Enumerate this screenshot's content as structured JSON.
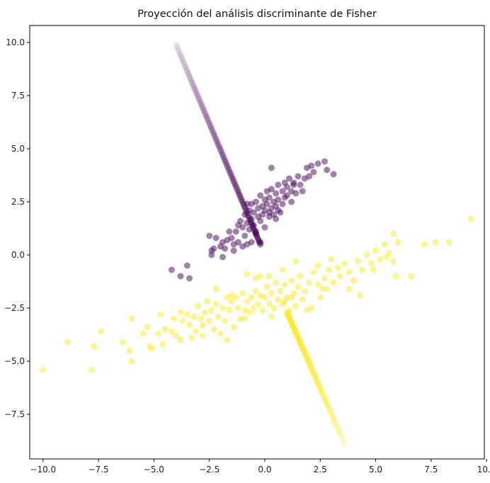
{
  "chart_data": {
    "type": "scatter",
    "title": "Proyección del análisis discriminante de Fisher",
    "xlabel": "",
    "ylabel": "",
    "xlim": [
      -10.6,
      9.9
    ],
    "ylim": [
      -9.6,
      10.8
    ],
    "xticks": [
      -10.0,
      -7.5,
      -5.0,
      -2.5,
      0.0,
      2.5,
      5.0,
      7.5,
      10.0
    ],
    "xtick_labels": [
      "−10.0",
      "−7.5",
      "−5.0",
      "−2.5",
      "0.0",
      "2.5",
      "5.0",
      "7.5",
      "10.0"
    ],
    "yticks": [
      -7.5,
      -5.0,
      -2.5,
      0.0,
      2.5,
      5.0,
      7.5,
      10.0
    ],
    "ytick_labels": [
      "−7.5",
      "−5.0",
      "−2.5",
      "0.0",
      "2.5",
      "5.0",
      "7.5",
      "10.0"
    ],
    "grid": false,
    "legend": "none",
    "series": [
      {
        "color": "#440154",
        "points": [
          [
            -4.2,
            -0.7
          ],
          [
            -3.8,
            -1.0
          ],
          [
            -3.4,
            -1.1
          ],
          [
            -3.5,
            -0.5
          ],
          [
            -2.4,
            0.2
          ],
          [
            -2.3,
            0.3
          ],
          [
            -2.0,
            0.4
          ],
          [
            -2.2,
            0.8
          ],
          [
            -2.5,
            0.9
          ],
          [
            -1.7,
            0.7
          ],
          [
            -1.8,
            0.3
          ],
          [
            -1.5,
            0.8
          ],
          [
            -1.4,
            0.5
          ],
          [
            -1.3,
            1.1
          ],
          [
            -1.2,
            0.6
          ],
          [
            -1.1,
            1.6
          ],
          [
            -1.0,
            1.3
          ],
          [
            -0.9,
            0.9
          ],
          [
            -0.9,
            1.9
          ],
          [
            -0.8,
            1.5
          ],
          [
            -0.8,
            0.5
          ],
          [
            -0.7,
            2.1
          ],
          [
            -0.7,
            1.2
          ],
          [
            -0.6,
            1.7
          ],
          [
            -0.6,
            2.4
          ],
          [
            -0.5,
            1.4
          ],
          [
            -0.5,
            2.0
          ],
          [
            -0.4,
            1.0
          ],
          [
            -0.4,
            2.5
          ],
          [
            -0.3,
            1.8
          ],
          [
            -0.3,
            2.2
          ],
          [
            -0.2,
            1.6
          ],
          [
            -0.2,
            2.8
          ],
          [
            -0.1,
            2.3
          ],
          [
            -0.1,
            1.9
          ],
          [
            0.0,
            2.6
          ],
          [
            0.0,
            2.1
          ],
          [
            0.1,
            3.0
          ],
          [
            0.1,
            2.4
          ],
          [
            0.2,
            1.8
          ],
          [
            0.2,
            2.7
          ],
          [
            0.3,
            2.2
          ],
          [
            0.3,
            3.1
          ],
          [
            0.4,
            2.5
          ],
          [
            0.4,
            1.9
          ],
          [
            0.5,
            2.9
          ],
          [
            0.5,
            2.3
          ],
          [
            0.6,
            3.3
          ],
          [
            0.6,
            2.6
          ],
          [
            0.7,
            2.0
          ],
          [
            0.8,
            3.0
          ],
          [
            0.8,
            2.4
          ],
          [
            0.9,
            3.4
          ],
          [
            0.9,
            2.7
          ],
          [
            1.0,
            3.2
          ],
          [
            1.0,
            2.8
          ],
          [
            1.1,
            3.6
          ],
          [
            1.2,
            3.0
          ],
          [
            1.3,
            3.4
          ],
          [
            1.4,
            2.9
          ],
          [
            1.5,
            3.7
          ],
          [
            1.6,
            3.3
          ],
          [
            1.8,
            3.6
          ],
          [
            1.9,
            4.1
          ],
          [
            2.0,
            3.7
          ],
          [
            2.1,
            4.2
          ],
          [
            2.2,
            3.9
          ],
          [
            2.4,
            4.3
          ],
          [
            2.7,
            4.4
          ],
          [
            2.8,
            4.0
          ],
          [
            3.1,
            3.8
          ],
          [
            0.3,
            4.1
          ],
          [
            -0.2,
            0.6
          ],
          [
            -1.4,
            0.2
          ],
          [
            -1.9,
            -0.1
          ],
          [
            -2.4,
            0.0
          ],
          [
            -0.6,
            0.6
          ],
          [
            -1.0,
            0.4
          ],
          [
            0.0,
            1.3
          ],
          [
            0.5,
            1.7
          ],
          [
            -1.6,
            1.1
          ],
          [
            -1.2,
            1.4
          ],
          [
            -0.4,
            1.1
          ],
          [
            0.6,
            2.1
          ],
          [
            1.2,
            2.5
          ],
          [
            1.7,
            3.0
          ],
          [
            -1.9,
            0.6
          ],
          [
            -0.8,
            2.4
          ],
          [
            0.2,
            2.0
          ],
          [
            1.3,
            3.3
          ]
        ],
        "projection": {
          "from": [
            -4.0,
            9.9
          ],
          "to": [
            -0.2,
            0.5
          ],
          "count": 90
        }
      },
      {
        "color": "#fde725",
        "points": [
          [
            -10.0,
            -5.4
          ],
          [
            -8.9,
            -4.1
          ],
          [
            -7.7,
            -4.3
          ],
          [
            -7.8,
            -5.4
          ],
          [
            -7.4,
            -3.6
          ],
          [
            -6.1,
            -4.5
          ],
          [
            -6.0,
            -5.0
          ],
          [
            -6.0,
            -3.0
          ],
          [
            -5.3,
            -3.4
          ],
          [
            -5.2,
            -4.3
          ],
          [
            -5.1,
            -4.4
          ],
          [
            -4.8,
            -3.7
          ],
          [
            -4.7,
            -2.8
          ],
          [
            -4.6,
            -4.2
          ],
          [
            -4.5,
            -3.5
          ],
          [
            -4.2,
            -3.6
          ],
          [
            -4.0,
            -3.8
          ],
          [
            -3.8,
            -4.0
          ],
          [
            -3.7,
            -3.1
          ],
          [
            -3.5,
            -2.8
          ],
          [
            -3.4,
            -3.3
          ],
          [
            -3.2,
            -2.9
          ],
          [
            -3.1,
            -3.6
          ],
          [
            -3.0,
            -2.4
          ],
          [
            -2.9,
            -3.0
          ],
          [
            -2.8,
            -3.3
          ],
          [
            -2.7,
            -2.7
          ],
          [
            -2.6,
            -2.2
          ],
          [
            -2.5,
            -3.1
          ],
          [
            -2.4,
            -2.6
          ],
          [
            -2.3,
            -3.5
          ],
          [
            -2.2,
            -2.3
          ],
          [
            -2.1,
            -2.9
          ],
          [
            -2.0,
            -3.7
          ],
          [
            -1.9,
            -2.5
          ],
          [
            -1.8,
            -3.1
          ],
          [
            -1.7,
            -4.0
          ],
          [
            -1.6,
            -2.6
          ],
          [
            -1.5,
            -2.2
          ],
          [
            -1.4,
            -3.4
          ],
          [
            -1.3,
            -2.0
          ],
          [
            -1.2,
            -2.5
          ],
          [
            -1.1,
            -3.0
          ],
          [
            -1.0,
            -1.8
          ],
          [
            -0.9,
            -2.6
          ],
          [
            -0.8,
            -2.2
          ],
          [
            -0.7,
            -2.7
          ],
          [
            -0.6,
            -2.0
          ],
          [
            -0.5,
            -2.5
          ],
          [
            -0.4,
            -1.7
          ],
          [
            -0.3,
            -2.3
          ],
          [
            -0.2,
            -1.9
          ],
          [
            -0.1,
            -2.6
          ],
          [
            0.0,
            -2.0
          ],
          [
            0.1,
            -1.5
          ],
          [
            0.2,
            -2.3
          ],
          [
            0.3,
            -1.8
          ],
          [
            0.4,
            -2.5
          ],
          [
            0.5,
            -1.3
          ],
          [
            0.6,
            -2.1
          ],
          [
            0.7,
            -1.7
          ],
          [
            0.8,
            -2.3
          ],
          [
            0.9,
            -1.4
          ],
          [
            1.0,
            -2.0
          ],
          [
            1.1,
            -2.6
          ],
          [
            1.2,
            -1.2
          ],
          [
            1.3,
            -1.8
          ],
          [
            1.4,
            -2.4
          ],
          [
            1.5,
            -1.5
          ],
          [
            1.6,
            -1.0
          ],
          [
            1.7,
            -2.1
          ],
          [
            1.8,
            -1.7
          ],
          [
            2.0,
            -1.3
          ],
          [
            2.1,
            -2.5
          ],
          [
            2.2,
            -0.8
          ],
          [
            2.4,
            -1.4
          ],
          [
            2.5,
            -2.0
          ],
          [
            2.7,
            -1.1
          ],
          [
            2.8,
            -1.6
          ],
          [
            2.9,
            -0.7
          ],
          [
            3.0,
            -0.2
          ],
          [
            3.1,
            -1.3
          ],
          [
            3.3,
            -0.6
          ],
          [
            3.4,
            -1.0
          ],
          [
            3.6,
            -0.4
          ],
          [
            3.8,
            -0.8
          ],
          [
            4.0,
            -1.2
          ],
          [
            4.2,
            -0.3
          ],
          [
            4.4,
            -0.7
          ],
          [
            4.6,
            0.0
          ],
          [
            4.8,
            -0.4
          ],
          [
            5.0,
            0.2
          ],
          [
            5.2,
            -0.2
          ],
          [
            5.4,
            0.5
          ],
          [
            5.6,
            0.1
          ],
          [
            5.8,
            -0.3
          ],
          [
            6.0,
            0.6
          ],
          [
            5.9,
            -1.0
          ],
          [
            6.6,
            -1.0
          ],
          [
            7.2,
            0.5
          ],
          [
            7.7,
            0.6
          ],
          [
            8.3,
            0.6
          ],
          [
            9.3,
            1.7
          ],
          [
            5.8,
            1.0
          ],
          [
            2.4,
            -0.5
          ],
          [
            1.4,
            -0.3
          ],
          [
            0.8,
            -0.7
          ],
          [
            -0.8,
            -0.9
          ],
          [
            -2.2,
            -1.6
          ],
          [
            -1.5,
            -1.9
          ],
          [
            0.3,
            -2.9
          ],
          [
            -0.9,
            -3.0
          ],
          [
            -2.8,
            -3.8
          ],
          [
            -3.3,
            -3.9
          ],
          [
            1.9,
            -2.6
          ],
          [
            2.6,
            -1.6
          ],
          [
            3.8,
            -1.6
          ],
          [
            4.3,
            -1.9
          ],
          [
            4.9,
            -0.7
          ],
          [
            5.5,
            -0.1
          ],
          [
            -3.8,
            -2.7
          ],
          [
            -4.1,
            -3.0
          ],
          [
            -5.5,
            -3.7
          ],
          [
            -6.4,
            -4.1
          ],
          [
            0.9,
            -2.2
          ],
          [
            1.2,
            -2.0
          ],
          [
            -0.4,
            -1.1
          ],
          [
            -0.2,
            -1.0
          ],
          [
            0.2,
            -1.0
          ],
          [
            -1.7,
            -2.0
          ]
        ],
        "projection": {
          "from": [
            1.0,
            -2.7
          ],
          "to": [
            3.6,
            -8.9
          ],
          "count": 90
        }
      }
    ]
  }
}
